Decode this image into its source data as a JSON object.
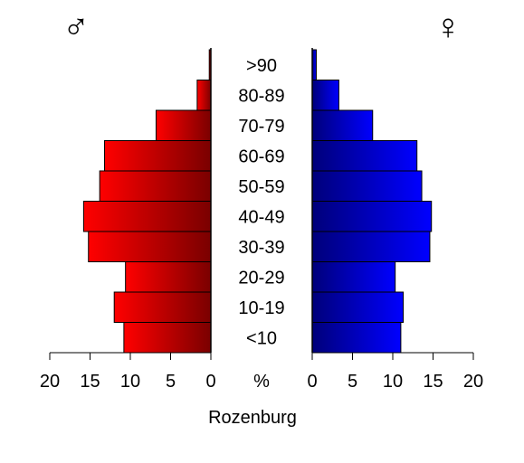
{
  "chart_data": {
    "type": "bar",
    "orientation": "horizontal",
    "subtype": "population-pyramid",
    "title": "Rozenburg",
    "unit_label": "%",
    "categories": [
      "<10",
      "10-19",
      "20-29",
      "30-39",
      "40-49",
      "50-59",
      "60-69",
      "70-79",
      "80-89",
      ">90"
    ],
    "series": [
      {
        "name": "♂",
        "side": "left",
        "gradient": [
          "#ff0000",
          "#7a0000"
        ],
        "values": [
          10.8,
          12.0,
          10.6,
          15.2,
          15.8,
          13.8,
          13.2,
          6.8,
          1.7,
          0.2
        ]
      },
      {
        "name": "♀",
        "side": "right",
        "gradient": [
          "#00007a",
          "#0000ff"
        ],
        "values": [
          11.0,
          11.3,
          10.3,
          14.6,
          14.8,
          13.6,
          13.0,
          7.5,
          3.3,
          0.5
        ]
      }
    ],
    "xlim": [
      0,
      20
    ],
    "ticks": [
      0,
      5,
      10,
      15,
      20
    ],
    "tick_labels_left": [
      "20",
      "15",
      "10",
      "5",
      "0"
    ],
    "tick_labels_right": [
      "0",
      "5",
      "10",
      "15",
      "20"
    ],
    "grid": false,
    "legend": "none"
  }
}
